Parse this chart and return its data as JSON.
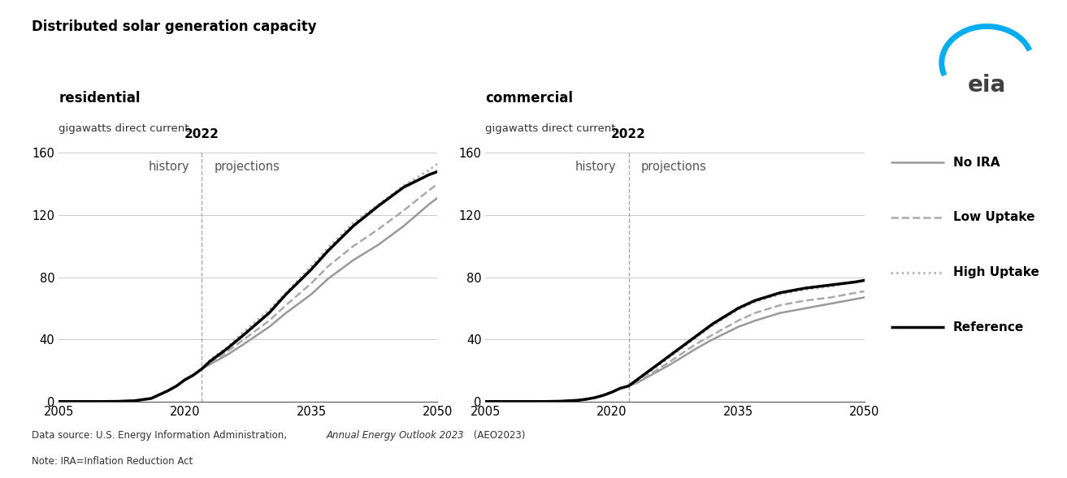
{
  "title": "Distributed solar generation capacity",
  "left_panel_title": "residential",
  "right_panel_title": "commercial",
  "unit_label": "gigawatts direct current",
  "divider_year": 2022,
  "history_label": "history",
  "projections_label": "projections",
  "xlim": [
    2005,
    2050
  ],
  "ylim_left": [
    0,
    160
  ],
  "ylim_right": [
    0,
    160
  ],
  "yticks": [
    0,
    40,
    80,
    120,
    160
  ],
  "xticks": [
    2005,
    2020,
    2035,
    2050
  ],
  "legend_entries": [
    {
      "label": "No IRA",
      "color": "#999999",
      "linestyle": "solid",
      "linewidth": 1.8
    },
    {
      "label": "Low Uptake",
      "color": "#aaaaaa",
      "linestyle": "dashed",
      "linewidth": 1.8
    },
    {
      "label": "High Uptake",
      "color": "#aaaaaa",
      "linestyle": "dotted",
      "linewidth": 1.8
    },
    {
      "label": "Reference",
      "color": "#000000",
      "linestyle": "solid",
      "linewidth": 2.5
    }
  ],
  "res_years": [
    2005,
    2008,
    2010,
    2012,
    2014,
    2016,
    2018,
    2019,
    2020,
    2021,
    2022,
    2023,
    2025,
    2027,
    2030,
    2032,
    2035,
    2037,
    2040,
    2043,
    2046,
    2049,
    2050
  ],
  "res_reference": [
    0,
    0,
    0,
    0.1,
    0.5,
    2.0,
    7.0,
    10,
    14,
    17,
    21,
    26,
    34,
    43,
    57,
    69,
    85,
    97,
    113,
    126,
    138,
    146,
    148
  ],
  "res_no_ira": [
    0,
    0,
    0,
    0.1,
    0.5,
    2.0,
    7.0,
    10,
    14,
    17,
    21,
    24,
    30,
    37,
    48,
    57,
    69,
    79,
    91,
    101,
    113,
    127,
    131
  ],
  "res_low_uptake": [
    0,
    0,
    0,
    0.1,
    0.5,
    2.0,
    7.0,
    10,
    14,
    17,
    21,
    25,
    32,
    40,
    52,
    62,
    76,
    87,
    100,
    111,
    123,
    136,
    140
  ],
  "res_high_uptake": [
    0,
    0,
    0,
    0.1,
    0.5,
    2.0,
    7.0,
    10,
    14,
    17,
    21,
    27,
    35,
    45,
    59,
    70,
    87,
    99,
    115,
    127,
    139,
    149,
    153
  ],
  "com_years": [
    2005,
    2008,
    2010,
    2012,
    2014,
    2016,
    2017,
    2018,
    2019,
    2020,
    2021,
    2022,
    2023,
    2025,
    2027,
    2030,
    2032,
    2035,
    2037,
    2040,
    2043,
    2046,
    2049,
    2050
  ],
  "com_reference": [
    0,
    0,
    0,
    0,
    0.2,
    0.8,
    1.5,
    2.5,
    4.0,
    6.0,
    8.5,
    10,
    14,
    22,
    30,
    42,
    50,
    60,
    65,
    70,
    73,
    75,
    77,
    78
  ],
  "com_no_ira": [
    0,
    0,
    0,
    0,
    0.2,
    0.8,
    1.5,
    2.5,
    4.0,
    6.0,
    8.5,
    10,
    12,
    18,
    24,
    34,
    40,
    48,
    52,
    57,
    60,
    63,
    66,
    67
  ],
  "com_low_uptake": [
    0,
    0,
    0,
    0,
    0.2,
    0.8,
    1.5,
    2.5,
    4.0,
    6.0,
    8.5,
    10,
    12.5,
    19,
    26,
    37,
    43,
    52,
    57,
    62,
    65,
    67,
    70,
    71
  ],
  "com_high_uptake": [
    0,
    0,
    0,
    0,
    0.2,
    0.8,
    1.5,
    2.5,
    4.0,
    6.0,
    8.5,
    10,
    13,
    21,
    29,
    41,
    49,
    59,
    64,
    69,
    72,
    74,
    77,
    78
  ],
  "background_color": "#ffffff",
  "grid_color": "#cccccc",
  "divider_color": "#aaaaaa",
  "footnote_line1_prefix": "Data source: U.S. Energy Information Administration, ",
  "footnote_line1_italic": "Annual Energy Outlook 2023",
  "footnote_line1_suffix": " (AEO2023)",
  "footnote_line2": "Note: IRA=Inflation Reduction Act"
}
